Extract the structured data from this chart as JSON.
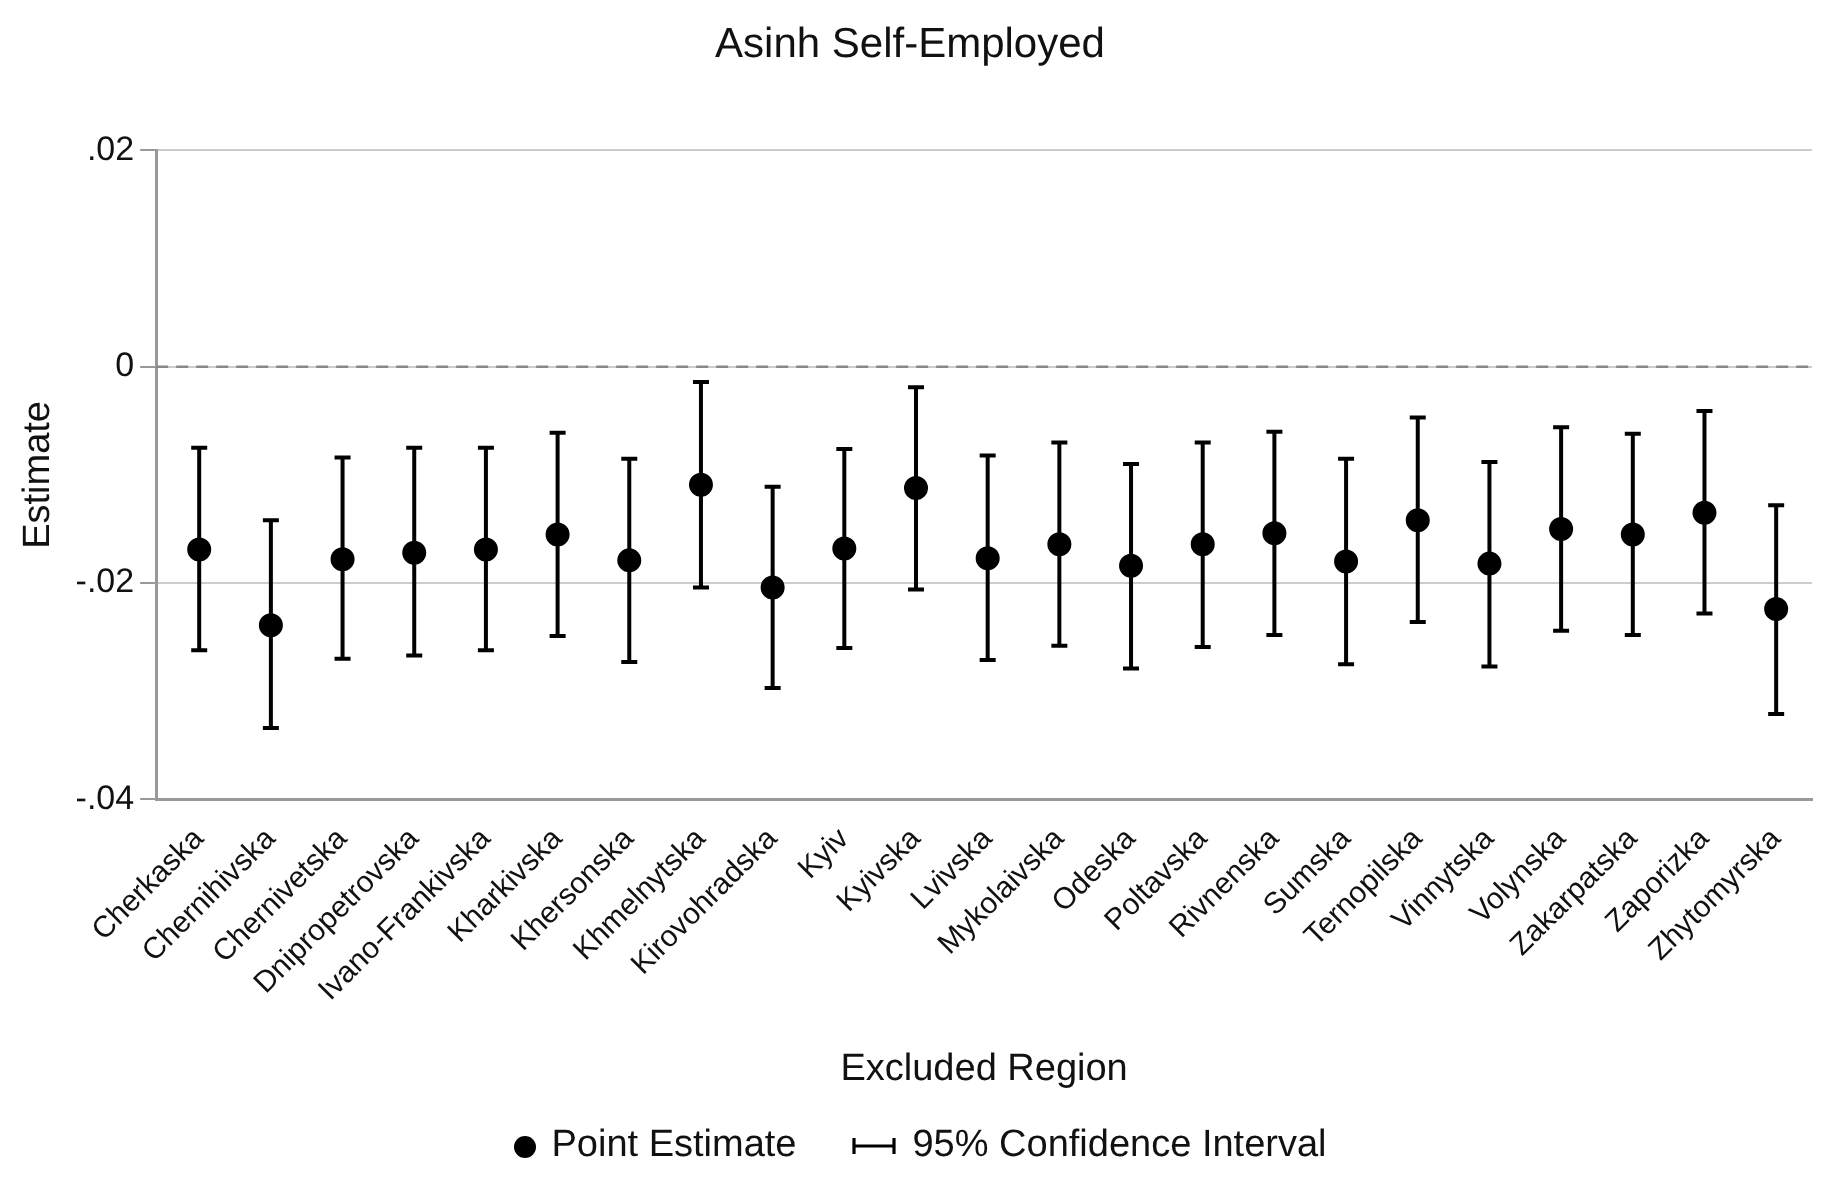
{
  "chart_data": {
    "type": "scatter",
    "title": "Asinh Self-Employed",
    "xlabel": "Excluded Region",
    "ylabel": "Estimate",
    "categories": [
      "Cherkaska",
      "Chernihivska",
      "Chernivetska",
      "Dnipropetrovska",
      "Ivano-Frankivska",
      "Kharkivska",
      "Khersonska",
      "Khmelnytska",
      "Kirovohradska",
      "Kyiv",
      "Kyivska",
      "Lvivska",
      "Mykolaivska",
      "Odeska",
      "Poltavska",
      "Rivnenska",
      "Sumska",
      "Ternopilska",
      "Vinnytska",
      "Volynska",
      "Zakarpatska",
      "Zaporizka",
      "Zhytomyrska"
    ],
    "series": [
      {
        "name": "Point Estimate",
        "color": "#000000",
        "values": [
          -0.0169,
          -0.0239,
          -0.0178,
          -0.0172,
          -0.0169,
          -0.0155,
          -0.0179,
          -0.0109,
          -0.0204,
          -0.0168,
          -0.0112,
          -0.0177,
          -0.0164,
          -0.0184,
          -0.0164,
          -0.0154,
          -0.018,
          -0.0142,
          -0.0182,
          -0.015,
          -0.0155,
          -0.0135,
          -0.0224
        ],
        "errors": [
          [
            -0.0262,
            -0.0075
          ],
          [
            -0.0334,
            -0.0142
          ],
          [
            -0.027,
            -0.0084
          ],
          [
            -0.0267,
            -0.0075
          ],
          [
            -0.0262,
            -0.0075
          ],
          [
            -0.0249,
            -0.0061
          ],
          [
            -0.0273,
            -0.0085
          ],
          [
            -0.0204,
            -0.0014
          ],
          [
            -0.0297,
            -0.0111
          ],
          [
            -0.026,
            -0.0076
          ],
          [
            -0.0206,
            -0.0019
          ],
          [
            -0.0271,
            -0.0082
          ],
          [
            -0.0258,
            -0.007
          ],
          [
            -0.0279,
            -0.009
          ],
          [
            -0.0259,
            -0.007
          ],
          [
            -0.0248,
            -0.006
          ],
          [
            -0.0275,
            -0.0085
          ],
          [
            -0.0236,
            -0.0047
          ],
          [
            -0.0277,
            -0.0088
          ],
          [
            -0.0244,
            -0.0056
          ],
          [
            -0.0248,
            -0.0062
          ],
          [
            -0.0228,
            -0.0041
          ],
          [
            -0.0321,
            -0.0128
          ]
        ]
      }
    ],
    "ylim": [
      -0.04,
      0.02
    ],
    "yticks": [
      {
        "value": -0.04,
        "label": "-.04"
      },
      {
        "value": -0.02,
        "label": "-.02"
      },
      {
        "value": 0,
        "label": "0"
      },
      {
        "value": 0.02,
        "label": ".02"
      }
    ],
    "grid": "y",
    "marker": "circle",
    "legend": "bottom",
    "ref_lines": [
      {
        "axis": "y",
        "value": 0,
        "color": "#888888",
        "line_style": "dashed"
      }
    ],
    "annotations": [
      "95% Confidence Interval"
    ]
  }
}
